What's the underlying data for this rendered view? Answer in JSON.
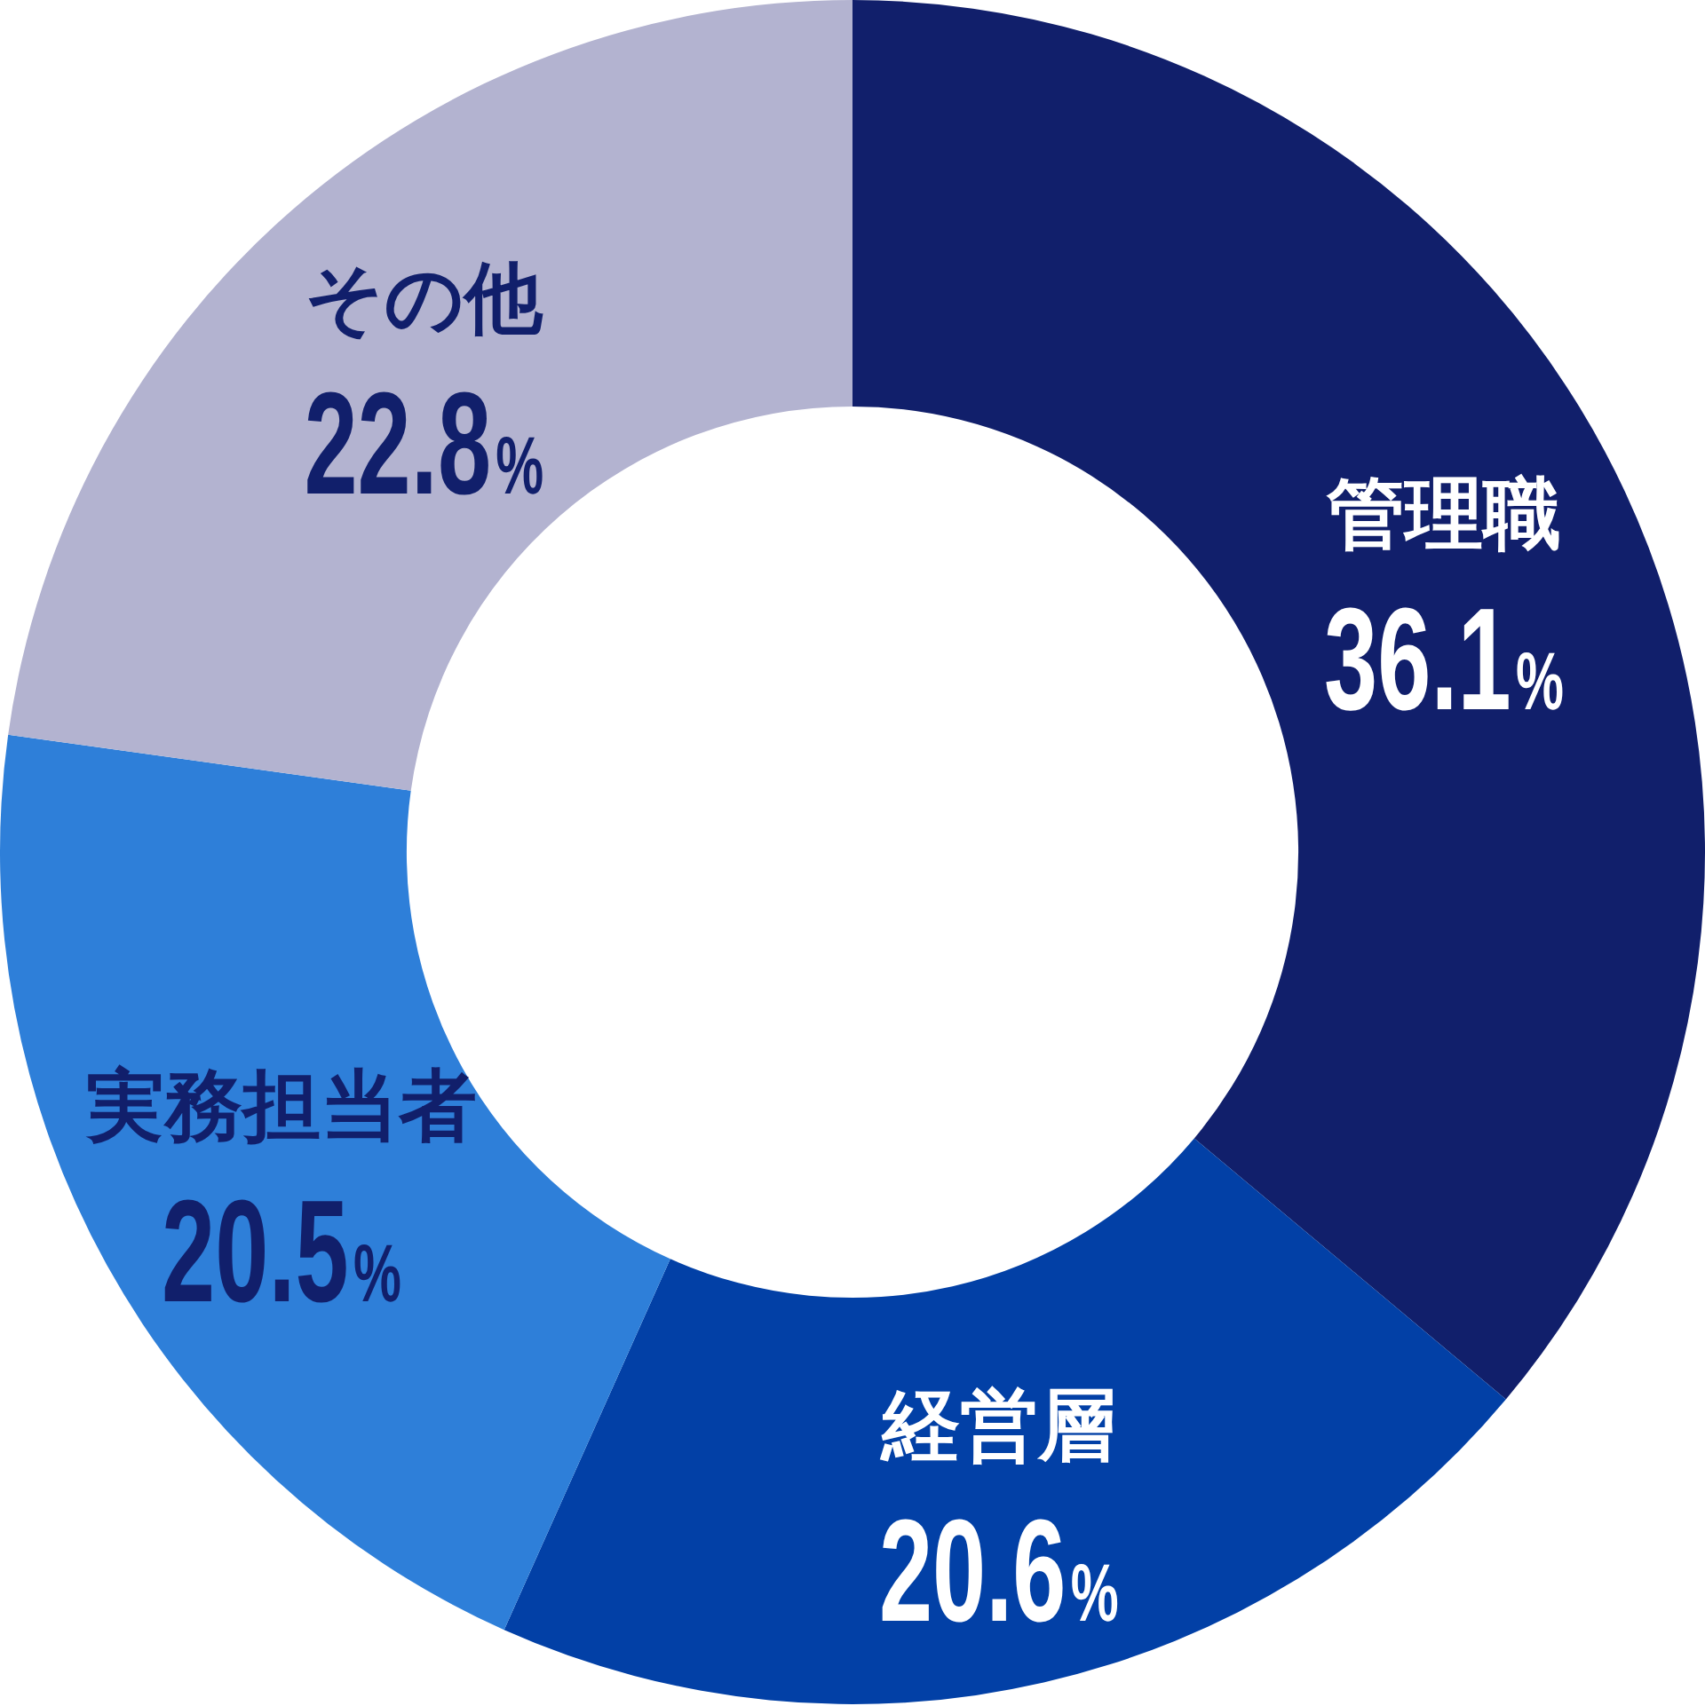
{
  "chart_data": {
    "type": "donut",
    "categories": [
      "管理職",
      "経営層",
      "実務担当者",
      "その他"
    ],
    "values": [
      36.1,
      20.6,
      20.5,
      22.8
    ],
    "colors": [
      "#111f6b",
      "#0240a6",
      "#2e7fd9",
      "#b3b3d0"
    ],
    "value_labels": [
      "36.1%",
      "20.6%",
      "20.5%",
      "22.8%"
    ]
  }
}
